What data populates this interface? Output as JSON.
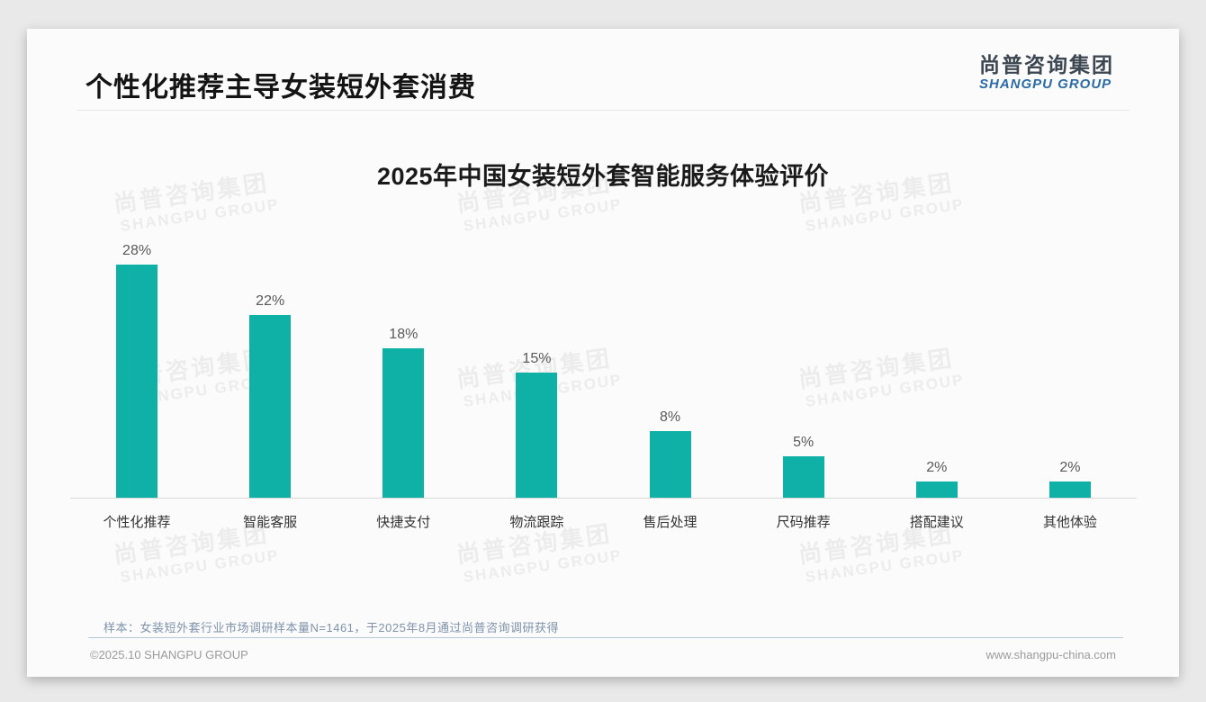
{
  "page": {
    "title": "个性化推荐主导女装短外套消费",
    "logo": {
      "cn": "尚普咨询集团",
      "en": "SHANGPU GROUP"
    },
    "watermark": {
      "cn": "尚普咨询集团",
      "en": "SHANGPU GROUP"
    },
    "footer": {
      "note": "样本：女装短外套行业市场调研样本量N=1461，于2025年8月通过尚普咨询调研获得",
      "copyright": "©2025.10 SHANGPU GROUP",
      "website": "www.shangpu-china.com"
    },
    "colors": {
      "bar": "#0FB1A7",
      "logo_blue": "#2b6ba6",
      "note_blue_gray": "#7e93ab",
      "card_bg": "#fbfbfb",
      "page_bg": "#e9e9e9"
    }
  },
  "chart_data": {
    "type": "bar",
    "title": "2025年中国女装短外套智能服务体验评价",
    "categories": [
      "个性化推荐",
      "智能客服",
      "快捷支付",
      "物流跟踪",
      "售后处理",
      "尺码推荐",
      "搭配建议",
      "其他体验"
    ],
    "values": [
      28,
      22,
      18,
      15,
      8,
      5,
      2,
      2
    ],
    "value_labels": [
      "28%",
      "22%",
      "18%",
      "15%",
      "8%",
      "5%",
      "2%",
      "2%"
    ],
    "unit": "%",
    "ylim": [
      0,
      30
    ],
    "grid": false,
    "legend_position": "none",
    "bar_color": "#0FB1A7"
  }
}
